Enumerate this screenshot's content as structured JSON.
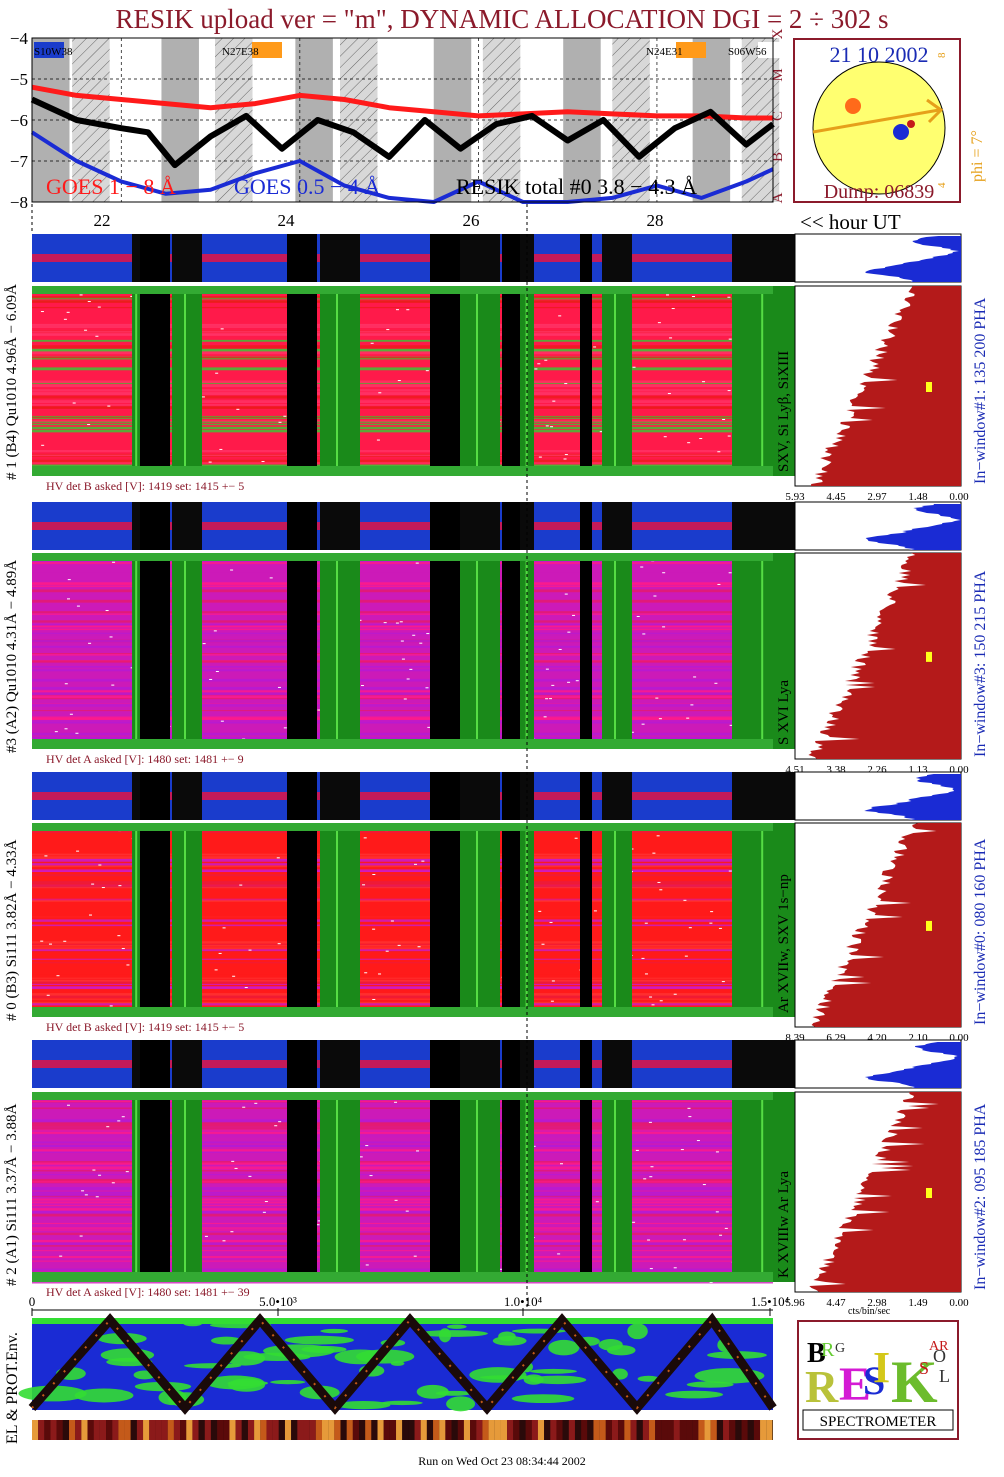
{
  "title": "RESIK upload ver = \"m\", DYNAMIC ALLOCATION  DGI =   2 ÷ 302 s",
  "chart_data": [
    {
      "type": "line",
      "name": "goes-lightcurve",
      "y_ticks": [
        "−4",
        "−5",
        "−6",
        "−7",
        "−8"
      ],
      "ylim": [
        -8,
        -4
      ],
      "class_labels": [
        "A",
        "B",
        "C",
        "M",
        "X"
      ],
      "x_ticks": [
        "22",
        "24",
        "26",
        "28"
      ],
      "x_unit_label": "<< hour UT",
      "legend": [
        {
          "label": "GOES 1 − 8 Å",
          "color": "#ff1a1a"
        },
        {
          "label": "GOES 0.5 − 4 Å",
          "color": "#1a2bd4"
        },
        {
          "label": "RESIK total #0  3.8 − 4.3 Å",
          "color": "#000000"
        }
      ],
      "active_regions": [
        {
          "label": "S10W38",
          "color": "#1a3ccc"
        },
        {
          "label": "N27E38",
          "color": "#ff9a1a"
        },
        {
          "label": "N24E31",
          "color": "#ff9a1a"
        },
        {
          "label": "S06W56",
          "color": "#ffffff"
        }
      ],
      "series": [
        {
          "name": "GOES 1 - 8 A",
          "x": [
            21.0,
            21.5,
            22.0,
            22.5,
            23.0,
            23.5,
            24.0,
            24.5,
            25.0,
            25.5,
            26.0,
            26.5,
            27.0,
            27.5,
            28.0,
            28.5,
            29.0,
            29.3
          ],
          "values": [
            -5.2,
            -5.4,
            -5.5,
            -5.6,
            -5.7,
            -5.6,
            -5.4,
            -5.5,
            -5.7,
            -5.8,
            -5.9,
            -5.85,
            -5.8,
            -5.85,
            -5.9,
            -5.9,
            -5.95,
            -5.95
          ]
        },
        {
          "name": "GOES 0.5 - 4 A",
          "x": [
            21.0,
            21.5,
            22.0,
            22.5,
            23.0,
            23.5,
            24.0,
            24.5,
            25.0,
            25.5,
            26.0,
            26.5,
            27.0,
            27.5,
            28.0,
            28.5,
            29.0,
            29.3
          ],
          "values": [
            -6.3,
            -7.0,
            -7.5,
            -7.8,
            -7.7,
            -7.3,
            -7.0,
            -7.6,
            -7.9,
            -8.0,
            -7.5,
            -8.0,
            -8.0,
            -7.9,
            -7.6,
            -7.9,
            -7.5,
            -7.2
          ]
        },
        {
          "name": "RESIK total #0",
          "x": [
            21.0,
            21.5,
            22.0,
            22.3,
            22.6,
            23.0,
            23.4,
            23.8,
            24.2,
            24.6,
            25.0,
            25.4,
            25.8,
            26.2,
            26.6,
            27.0,
            27.4,
            27.8,
            28.2,
            28.6,
            29.0,
            29.3
          ],
          "values": [
            -5.5,
            -6.0,
            -6.2,
            -6.3,
            -7.1,
            -6.4,
            -5.9,
            -6.7,
            -6.0,
            -6.3,
            -6.9,
            -6.0,
            -6.7,
            -6.1,
            -5.9,
            -6.5,
            -6.0,
            -6.9,
            -6.2,
            -5.8,
            -6.6,
            -6.1
          ]
        }
      ]
    },
    {
      "type": "scatter",
      "name": "solar-disk",
      "date": "21 10 2002",
      "phi_label": "phi =",
      "phi_value": "7°",
      "side_ticks": [
        "8",
        "4"
      ],
      "dump_label": "Dump: 06839"
    },
    {
      "type": "heatmap",
      "name": "detector-panels",
      "panels": [
        {
          "label": "# 1 (B4) Qu1010 4.96Å − 6.09Å",
          "hv": "HV det B asked [V]:  1419  set:  1415  +−   5",
          "line_label": "SXV, Si Lyβ, SiXIII",
          "window_label": "In−window#1:  135 200 PHA",
          "spec_ticks": [
            "5.93",
            "4.45",
            "2.97",
            "1.48",
            "0.00"
          ]
        },
        {
          "label": "#3 (A2) Qu1010  4.31Å − 4.89Å",
          "hv": "HV det A asked [V]:  1480  set:  1481  +−   9",
          "line_label": "S XVI Lya",
          "window_label": "In−window#3:  150 215 PHA",
          "spec_ticks": [
            "4.51",
            "3.38",
            "2.26",
            "1.13",
            "0.00"
          ]
        },
        {
          "label": "# 0 (B3) Si111  3.82Å − 4.33Å",
          "hv": "HV det B asked [V]:  1419  set:  1415  +−   5",
          "line_label": "Ar XVIIw,  SXV 1s−np",
          "window_label": "In−window#0:  080 160 PHA",
          "spec_ticks": [
            "8.39",
            "6.29",
            "4.20",
            "2.10",
            "0.00"
          ]
        },
        {
          "label": "# 2 (A1) Si111  3.37Å − 3.88Å",
          "hv": "HV det A asked [V]:  1480  set:  1481  +−  39",
          "line_label": "K XVIIIw  Ar Lya",
          "window_label": "In−window#2:  095 185 PHA",
          "spec_ticks": [
            "5.96",
            "4.47",
            "2.98",
            "1.49",
            "0.00"
          ]
        }
      ],
      "spec_unit": "cts/bin/sec"
    },
    {
      "type": "heatmap",
      "name": "particle-environment",
      "ylabel": "EL & PROT.Env.",
      "x_ticks": [
        "0",
        "5.0•10³",
        "1.0•10⁴",
        "1.5•10⁴"
      ]
    }
  ],
  "logo": {
    "letters": [
      "B",
      "R",
      "E",
      "S",
      "I",
      "K",
      "S",
      "O",
      "L",
      "A",
      "R"
    ],
    "caption": "SPECTROMETER"
  },
  "footer": "Run on Wed Oct 23 08:34:44 2002"
}
